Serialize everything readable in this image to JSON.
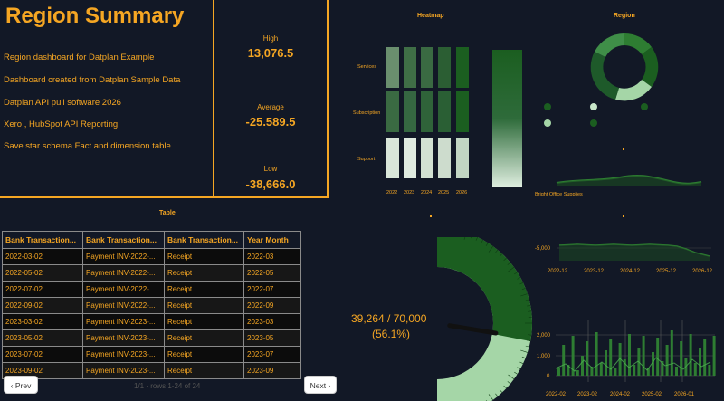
{
  "summary": {
    "title": "Region Summary",
    "lines": [
      "Region dashboard for Datplan Example",
      "Dashboard created from Datplan Sample Data",
      "Datplan API pull software 2026",
      "Xero , HubSpot API Reporting",
      "Save star schema Fact and dimension table"
    ]
  },
  "kpis": {
    "high_label": "High",
    "high_value": "13,076.5",
    "avg_label": "Average",
    "avg_value": "-25.589.5",
    "low_label": "Low",
    "low_value": "-38,666.0"
  },
  "heatmap": {
    "title": "Heatmap",
    "rows": [
      "Services",
      "Subscription",
      "Support"
    ],
    "cols": [
      "2022",
      "2023",
      "2024",
      "2025",
      "2026"
    ]
  },
  "region": {
    "title": "Region",
    "category_label": "Bright Office Supplies"
  },
  "table": {
    "title": "Table",
    "headers": [
      "Bank Transaction...",
      "Bank Transaction...",
      "Bank Transaction...",
      "Year Month"
    ],
    "rows": [
      [
        "2022-03-02",
        "Payment INV-2022-...",
        "Receipt",
        "2022-03"
      ],
      [
        "2022-05-02",
        "Payment INV-2022-...",
        "Receipt",
        "2022-05"
      ],
      [
        "2022-07-02",
        "Payment INV-2022-...",
        "Receipt",
        "2022-07"
      ],
      [
        "2022-09-02",
        "Payment INV-2022-...",
        "Receipt",
        "2022-09"
      ],
      [
        "2023-03-02",
        "Payment INV-2023-...",
        "Receipt",
        "2023-03"
      ],
      [
        "2023-05-02",
        "Payment INV-2023-...",
        "Receipt",
        "2023-05"
      ],
      [
        "2023-07-02",
        "Payment INV-2023-...",
        "Receipt",
        "2023-07"
      ],
      [
        "2023-09-02",
        "Payment INV-2023-...",
        "Receipt",
        "2023-09"
      ]
    ],
    "prev_label": "‹ Prev",
    "next_label": "Next ›",
    "pager_info": "1/1 · rows 1-24 of 24"
  },
  "gauge": {
    "label": "39,264 / 70,000",
    "percent_label": "(56.1%)",
    "value": 39264,
    "max": 70000
  },
  "line_chart": {
    "ytick": "-5,000",
    "xticks": [
      "2022-12",
      "2023-12",
      "2024-12",
      "2025-12",
      "2026-12"
    ]
  },
  "bar_chart": {
    "yticks": [
      "2,000",
      "1,000",
      "0"
    ],
    "xticks": [
      "2022-02",
      "2023-02",
      "2024-02",
      "2025-02",
      "2026-01"
    ]
  },
  "colors": {
    "accent": "#f5a623",
    "dark_green": "#1b5e20",
    "mid_green": "#2e7d32",
    "light_green": "#a5d6a7",
    "background": "#121826"
  }
}
